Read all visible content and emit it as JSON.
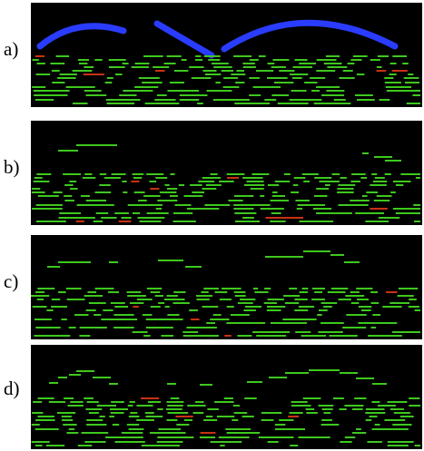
{
  "panels": [
    {
      "label": "a)"
    },
    {
      "label": "b)"
    },
    {
      "label": "c)"
    },
    {
      "label": "d)"
    }
  ],
  "colors": {
    "background": "#000000",
    "note": "#3ec81e",
    "note_accent": "#c83214",
    "arc": "#2a3cff"
  }
}
